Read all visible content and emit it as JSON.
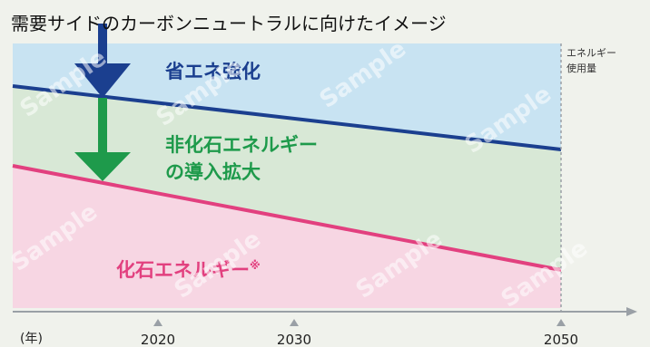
{
  "title": "需要サイドのカーボンニュートラルに向けたイメージ",
  "y_axis_label": [
    "エネルギー",
    "使用量"
  ],
  "x_axis": {
    "unit": "(年)",
    "ticks": [
      "2020",
      "2030",
      "2050"
    ]
  },
  "regions": {
    "energy_saving": {
      "label": "省エネ強化",
      "color": "#1b3f8f"
    },
    "non_fossil": {
      "label_lines": [
        "非化石エネルギー",
        "の導入拡大"
      ],
      "color": "#1e9a4b"
    },
    "fossil": {
      "label": "化石エネルギー",
      "note_mark": "※",
      "color": "#e2407f"
    }
  },
  "watermark": "Sample"
}
